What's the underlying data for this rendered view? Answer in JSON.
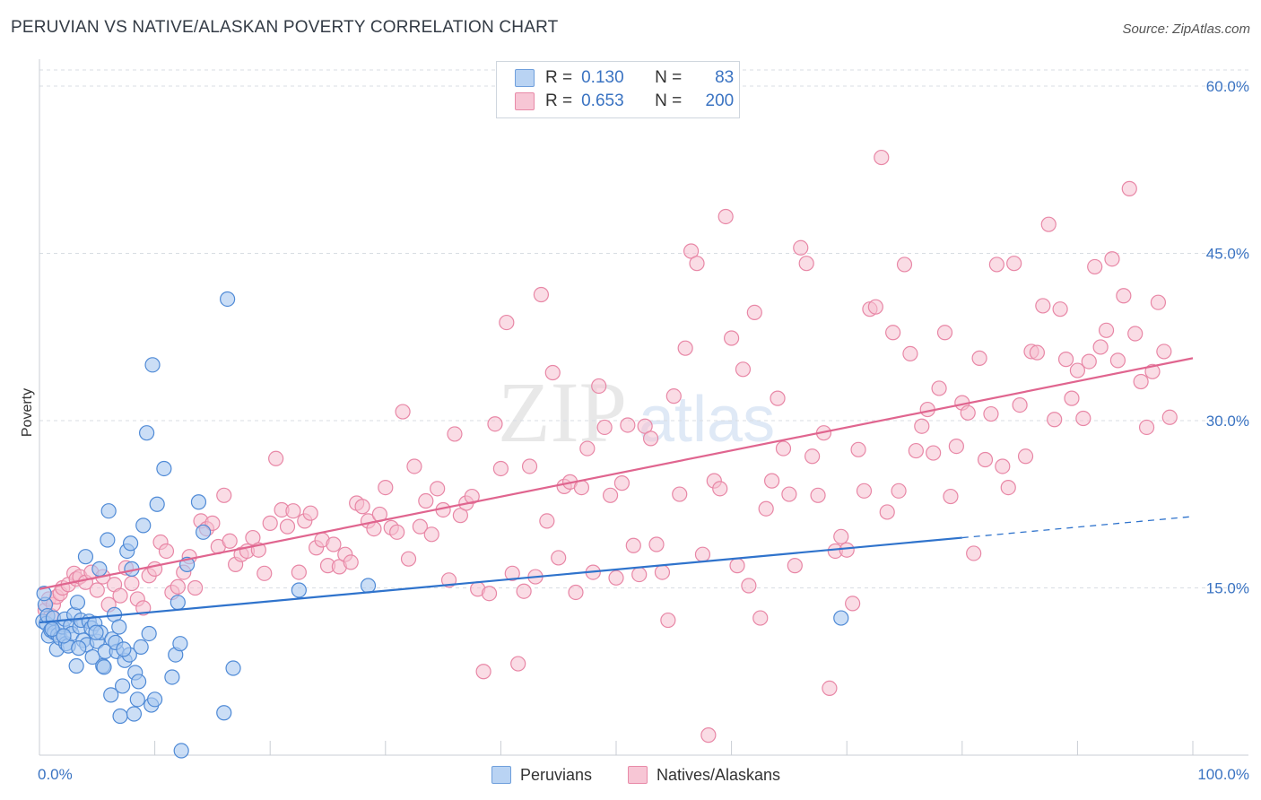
{
  "header": {
    "title": "PERUVIAN VS NATIVE/ALASKAN POVERTY CORRELATION CHART",
    "source": "Source: ZipAtlas.com"
  },
  "watermark": {
    "zip": "ZIP",
    "atlas": "atlas"
  },
  "legend": {
    "rows": [
      {
        "r_label": "R =",
        "r_value": "0.130",
        "n_label": "N =",
        "n_value": "83"
      },
      {
        "r_label": "R =",
        "r_value": "0.653",
        "n_label": "N =",
        "n_value": "200"
      }
    ],
    "bottom": [
      "Peruvians",
      "Natives/Alaskans"
    ]
  },
  "colors": {
    "blue_fill": "#a9c8f0",
    "blue_stroke": "#4f8ad6",
    "blue_line": "#2f73cc",
    "pink_fill": "#f5c0d0",
    "pink_stroke": "#e887a6",
    "pink_line": "#e0658f",
    "tick_text": "#3a73c2",
    "grid": "#d8dde3"
  },
  "chart_data": {
    "type": "scatter",
    "title": "PERUVIAN VS NATIVE/ALASKAN POVERTY CORRELATION CHART",
    "xlabel": "",
    "ylabel": "Poverty",
    "xlim": [
      0,
      100
    ],
    "ylim": [
      0,
      60
    ],
    "x_tick_labels": [
      "0.0%",
      "100.0%"
    ],
    "y_ticks": [
      15,
      30,
      45,
      60
    ],
    "y_tick_labels": [
      "15.0%",
      "30.0%",
      "45.0%",
      "60.0%"
    ],
    "grid": true,
    "legend_position": "top-center",
    "series": [
      {
        "name": "Peruvians",
        "r": 0.13,
        "n": 83,
        "trend": {
          "x0": 0,
          "y0": 11.9,
          "x1": 80,
          "y1": 19.5,
          "dashed_to_x": 100,
          "dashed_to_y": 21.4
        },
        "points": [
          [
            0.3,
            12.0
          ],
          [
            0.5,
            13.5
          ],
          [
            0.6,
            11.8
          ],
          [
            0.7,
            12.5
          ],
          [
            0.8,
            10.7
          ],
          [
            1.0,
            11.2
          ],
          [
            1.2,
            12.3
          ],
          [
            1.3,
            11.0
          ],
          [
            1.5,
            9.5
          ],
          [
            1.6,
            10.8
          ],
          [
            1.8,
            10.5
          ],
          [
            2.0,
            11.5
          ],
          [
            2.2,
            12.2
          ],
          [
            2.3,
            10.0
          ],
          [
            2.5,
            9.8
          ],
          [
            2.7,
            11.6
          ],
          [
            2.8,
            10.9
          ],
          [
            3.0,
            12.6
          ],
          [
            3.2,
            8.0
          ],
          [
            3.3,
            13.7
          ],
          [
            3.5,
            11.5
          ],
          [
            3.6,
            12.1
          ],
          [
            3.8,
            10.3
          ],
          [
            4.0,
            17.8
          ],
          [
            4.1,
            9.9
          ],
          [
            4.3,
            12.0
          ],
          [
            4.5,
            11.4
          ],
          [
            4.6,
            8.8
          ],
          [
            4.8,
            11.8
          ],
          [
            5.0,
            10.2
          ],
          [
            5.2,
            16.7
          ],
          [
            5.3,
            11.0
          ],
          [
            5.5,
            8.0
          ],
          [
            5.7,
            9.3
          ],
          [
            5.9,
            19.3
          ],
          [
            6.0,
            21.9
          ],
          [
            6.2,
            5.4
          ],
          [
            6.3,
            10.4
          ],
          [
            6.5,
            12.6
          ],
          [
            6.7,
            9.3
          ],
          [
            6.9,
            11.5
          ],
          [
            7.0,
            3.5
          ],
          [
            7.2,
            6.2
          ],
          [
            7.4,
            8.5
          ],
          [
            7.6,
            18.3
          ],
          [
            7.8,
            9.0
          ],
          [
            7.9,
            19.0
          ],
          [
            8.0,
            16.7
          ],
          [
            8.2,
            3.7
          ],
          [
            8.3,
            7.4
          ],
          [
            8.5,
            5.0
          ],
          [
            8.6,
            6.6
          ],
          [
            8.8,
            9.7
          ],
          [
            9.0,
            20.6
          ],
          [
            9.3,
            28.9
          ],
          [
            9.5,
            10.9
          ],
          [
            9.7,
            4.5
          ],
          [
            9.8,
            35.0
          ],
          [
            10.0,
            5.0
          ],
          [
            10.2,
            22.5
          ],
          [
            10.8,
            25.7
          ],
          [
            11.5,
            7.0
          ],
          [
            11.8,
            9.0
          ],
          [
            12.0,
            13.7
          ],
          [
            12.2,
            10.0
          ],
          [
            12.3,
            0.4
          ],
          [
            12.8,
            17.1
          ],
          [
            13.8,
            22.7
          ],
          [
            14.2,
            20.0
          ],
          [
            16.0,
            3.8
          ],
          [
            16.3,
            40.9
          ],
          [
            16.8,
            7.8
          ],
          [
            22.5,
            14.8
          ],
          [
            28.5,
            15.2
          ],
          [
            69.5,
            12.3
          ],
          [
            0.4,
            14.5
          ],
          [
            1.1,
            11.3
          ],
          [
            2.1,
            10.7
          ],
          [
            3.4,
            9.6
          ],
          [
            4.9,
            11.0
          ],
          [
            5.6,
            7.9
          ],
          [
            6.6,
            10.1
          ],
          [
            7.3,
            9.5
          ]
        ]
      },
      {
        "name": "Natives/Alaskans",
        "r": 0.653,
        "n": 200,
        "trend": {
          "x0": 0,
          "y0": 14.9,
          "x1": 100,
          "y1": 35.6
        },
        "points": [
          [
            0.5,
            13.0
          ],
          [
            0.8,
            14.0
          ],
          [
            1.0,
            12.5
          ],
          [
            1.2,
            13.5
          ],
          [
            1.5,
            14.2
          ],
          [
            1.8,
            14.5
          ],
          [
            2.0,
            15.0
          ],
          [
            2.5,
            15.3
          ],
          [
            3.0,
            16.3
          ],
          [
            3.2,
            15.8
          ],
          [
            3.5,
            16.0
          ],
          [
            4.0,
            15.5
          ],
          [
            4.5,
            16.4
          ],
          [
            5.0,
            14.8
          ],
          [
            5.5,
            16.0
          ],
          [
            6.0,
            13.5
          ],
          [
            6.5,
            15.3
          ],
          [
            7.0,
            14.3
          ],
          [
            7.5,
            16.8
          ],
          [
            8.0,
            15.4
          ],
          [
            8.5,
            14.0
          ],
          [
            9.0,
            13.2
          ],
          [
            9.5,
            16.1
          ],
          [
            10.0,
            16.7
          ],
          [
            10.5,
            19.1
          ],
          [
            11.0,
            18.3
          ],
          [
            11.5,
            14.6
          ],
          [
            12.0,
            15.1
          ],
          [
            12.5,
            16.4
          ],
          [
            13.0,
            17.8
          ],
          [
            13.5,
            15.0
          ],
          [
            14.0,
            21.0
          ],
          [
            14.5,
            20.3
          ],
          [
            15.0,
            20.8
          ],
          [
            15.5,
            18.7
          ],
          [
            16.0,
            23.3
          ],
          [
            16.5,
            19.2
          ],
          [
            17.0,
            17.1
          ],
          [
            17.5,
            18.0
          ],
          [
            18.0,
            18.3
          ],
          [
            18.5,
            19.5
          ],
          [
            19.0,
            18.4
          ],
          [
            19.5,
            16.3
          ],
          [
            20.0,
            20.8
          ],
          [
            20.5,
            26.6
          ],
          [
            21.0,
            22.0
          ],
          [
            21.5,
            20.5
          ],
          [
            22.0,
            21.9
          ],
          [
            22.5,
            16.4
          ],
          [
            23.0,
            21.0
          ],
          [
            23.5,
            21.7
          ],
          [
            24.0,
            18.6
          ],
          [
            24.5,
            19.3
          ],
          [
            25.0,
            17.0
          ],
          [
            25.5,
            18.9
          ],
          [
            26.0,
            16.9
          ],
          [
            26.5,
            18.0
          ],
          [
            27.0,
            17.3
          ],
          [
            27.5,
            22.6
          ],
          [
            28.0,
            22.3
          ],
          [
            28.5,
            21.0
          ],
          [
            29.0,
            20.3
          ],
          [
            29.5,
            21.6
          ],
          [
            30.0,
            24.0
          ],
          [
            30.5,
            20.4
          ],
          [
            31.0,
            20.0
          ],
          [
            31.5,
            30.8
          ],
          [
            32.0,
            17.6
          ],
          [
            32.5,
            25.9
          ],
          [
            33.0,
            20.5
          ],
          [
            33.5,
            22.8
          ],
          [
            34.0,
            19.8
          ],
          [
            34.5,
            23.9
          ],
          [
            35.0,
            22.0
          ],
          [
            35.5,
            15.7
          ],
          [
            36.0,
            28.8
          ],
          [
            36.5,
            21.5
          ],
          [
            37.0,
            22.6
          ],
          [
            37.5,
            23.2
          ],
          [
            38.0,
            14.9
          ],
          [
            38.5,
            7.5
          ],
          [
            39.0,
            14.5
          ],
          [
            39.5,
            29.7
          ],
          [
            40.0,
            25.7
          ],
          [
            40.5,
            38.8
          ],
          [
            41.0,
            16.3
          ],
          [
            41.5,
            8.2
          ],
          [
            42.0,
            14.7
          ],
          [
            42.5,
            25.9
          ],
          [
            43.0,
            16.0
          ],
          [
            43.5,
            41.3
          ],
          [
            44.0,
            21.0
          ],
          [
            44.5,
            34.3
          ],
          [
            45.0,
            17.7
          ],
          [
            45.5,
            24.1
          ],
          [
            46.0,
            24.5
          ],
          [
            46.5,
            14.6
          ],
          [
            47.0,
            24.0
          ],
          [
            47.5,
            27.5
          ],
          [
            48.0,
            16.4
          ],
          [
            48.5,
            33.1
          ],
          [
            49.0,
            29.4
          ],
          [
            49.5,
            23.3
          ],
          [
            50.0,
            15.9
          ],
          [
            50.5,
            24.4
          ],
          [
            51.0,
            29.6
          ],
          [
            51.5,
            18.8
          ],
          [
            52.0,
            16.2
          ],
          [
            52.5,
            29.5
          ],
          [
            53.0,
            28.4
          ],
          [
            53.5,
            18.9
          ],
          [
            54.0,
            16.4
          ],
          [
            54.5,
            12.1
          ],
          [
            55.0,
            32.2
          ],
          [
            55.5,
            23.4
          ],
          [
            56.0,
            36.5
          ],
          [
            56.5,
            45.2
          ],
          [
            57.0,
            44.1
          ],
          [
            57.5,
            18.0
          ],
          [
            58.0,
            1.8
          ],
          [
            58.5,
            24.6
          ],
          [
            59.0,
            23.9
          ],
          [
            59.5,
            48.3
          ],
          [
            60.0,
            37.4
          ],
          [
            60.5,
            17.0
          ],
          [
            61.0,
            34.6
          ],
          [
            61.5,
            15.2
          ],
          [
            62.0,
            39.7
          ],
          [
            62.5,
            12.3
          ],
          [
            63.0,
            22.1
          ],
          [
            63.5,
            24.6
          ],
          [
            64.0,
            32.0
          ],
          [
            64.5,
            27.5
          ],
          [
            65.0,
            23.4
          ],
          [
            65.5,
            17.0
          ],
          [
            66.0,
            45.5
          ],
          [
            66.5,
            44.1
          ],
          [
            67.0,
            26.8
          ],
          [
            67.5,
            23.3
          ],
          [
            68.0,
            28.9
          ],
          [
            68.5,
            6.0
          ],
          [
            69.0,
            18.3
          ],
          [
            69.5,
            19.6
          ],
          [
            70.0,
            18.4
          ],
          [
            70.5,
            13.6
          ],
          [
            71.0,
            27.4
          ],
          [
            71.5,
            23.7
          ],
          [
            72.0,
            40.0
          ],
          [
            72.5,
            40.2
          ],
          [
            73.0,
            53.6
          ],
          [
            73.5,
            21.8
          ],
          [
            74.0,
            37.9
          ],
          [
            74.5,
            23.7
          ],
          [
            75.0,
            44.0
          ],
          [
            75.5,
            36.0
          ],
          [
            76.0,
            27.3
          ],
          [
            76.5,
            29.5
          ],
          [
            77.0,
            31.0
          ],
          [
            77.5,
            27.1
          ],
          [
            78.0,
            32.9
          ],
          [
            78.5,
            37.9
          ],
          [
            79.0,
            23.2
          ],
          [
            79.5,
            27.7
          ],
          [
            80.0,
            31.6
          ],
          [
            80.5,
            30.7
          ],
          [
            81.0,
            18.1
          ],
          [
            81.5,
            35.6
          ],
          [
            82.0,
            26.5
          ],
          [
            82.5,
            30.6
          ],
          [
            83.0,
            44.0
          ],
          [
            83.5,
            25.9
          ],
          [
            84.0,
            24.0
          ],
          [
            84.5,
            44.1
          ],
          [
            85.0,
            31.4
          ],
          [
            85.5,
            26.8
          ],
          [
            86.0,
            36.2
          ],
          [
            86.5,
            36.1
          ],
          [
            87.0,
            40.3
          ],
          [
            87.5,
            47.6
          ],
          [
            88.0,
            30.1
          ],
          [
            88.5,
            40.0
          ],
          [
            89.0,
            35.5
          ],
          [
            89.5,
            32.0
          ],
          [
            90.0,
            34.5
          ],
          [
            90.5,
            30.2
          ],
          [
            91.0,
            35.3
          ],
          [
            91.5,
            43.8
          ],
          [
            92.0,
            36.6
          ],
          [
            92.5,
            38.1
          ],
          [
            93.0,
            44.5
          ],
          [
            93.5,
            35.4
          ],
          [
            94.0,
            41.2
          ],
          [
            94.5,
            50.8
          ],
          [
            95.0,
            37.8
          ],
          [
            95.5,
            33.5
          ],
          [
            96.0,
            29.4
          ],
          [
            96.5,
            34.4
          ],
          [
            97.0,
            40.6
          ],
          [
            97.5,
            36.2
          ],
          [
            98.0,
            30.3
          ]
        ]
      }
    ]
  }
}
